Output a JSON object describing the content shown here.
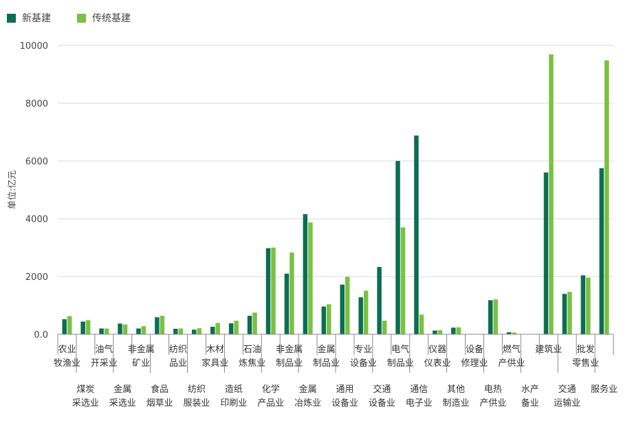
{
  "colors": {
    "new": "#0b6e52",
    "traditional": "#7ac143"
  },
  "chart_data": {
    "type": "bar",
    "ylabel": "单位:亿元",
    "ylim": [
      0,
      10000
    ],
    "yticks": [
      {
        "value": 0,
        "label": "0.0"
      },
      {
        "value": 2000,
        "label": "2000"
      },
      {
        "value": 4000,
        "label": "4000"
      },
      {
        "value": 6000,
        "label": "6000"
      },
      {
        "value": 8000,
        "label": "8000"
      },
      {
        "value": 10000,
        "label": "10000"
      }
    ],
    "legend": [
      "新基建",
      "传统基建"
    ],
    "categories": [
      [
        "农业",
        "牧渔业"
      ],
      [
        "煤炭",
        "采选业"
      ],
      [
        "油气",
        "开采业"
      ],
      [
        "金属",
        "采选业"
      ],
      [
        "非金属",
        "矿业"
      ],
      [
        "食品",
        "烟草业"
      ],
      [
        "纺织",
        "品业"
      ],
      [
        "纺织",
        "服装业"
      ],
      [
        "木材",
        "家具业"
      ],
      [
        "造纸",
        "印刷业"
      ],
      [
        "石油",
        "炼焦业"
      ],
      [
        "化学",
        "产品业"
      ],
      [
        "非金属",
        "制品业"
      ],
      [
        "金属",
        "冶炼业"
      ],
      [
        "金属",
        "制品业"
      ],
      [
        "通用",
        "设备业"
      ],
      [
        "专业",
        "设备业"
      ],
      [
        "交通",
        "设备业"
      ],
      [
        "电气",
        "制品业"
      ],
      [
        "通信",
        "电子业"
      ],
      [
        "仪器",
        "仪表业"
      ],
      [
        "其他",
        "制造业"
      ],
      [
        "设备",
        "修理业"
      ],
      [
        "电热",
        "产供业"
      ],
      [
        "燃气",
        "产供业"
      ],
      [
        "水产",
        "备业"
      ],
      [
        "建筑业"
      ],
      [
        "交通",
        "运输业"
      ],
      [
        "批发",
        "零售业"
      ],
      [
        "服务业"
      ]
    ],
    "series": [
      {
        "name": "新基建",
        "values": [
          520,
          440,
          200,
          370,
          200,
          590,
          190,
          160,
          260,
          380,
          640,
          2980,
          2100,
          4160,
          960,
          1720,
          1280,
          2330,
          6000,
          6880,
          130,
          230,
          10,
          1180,
          70,
          10,
          5600,
          1400,
          2040,
          5750
        ]
      },
      {
        "name": "传统基建",
        "values": [
          630,
          490,
          200,
          340,
          280,
          640,
          200,
          210,
          390,
          470,
          750,
          3000,
          2830,
          3870,
          1040,
          1990,
          1510,
          470,
          3700,
          680,
          140,
          240,
          10,
          1210,
          60,
          10,
          9690,
          1470,
          1960,
          9480
        ]
      }
    ]
  }
}
